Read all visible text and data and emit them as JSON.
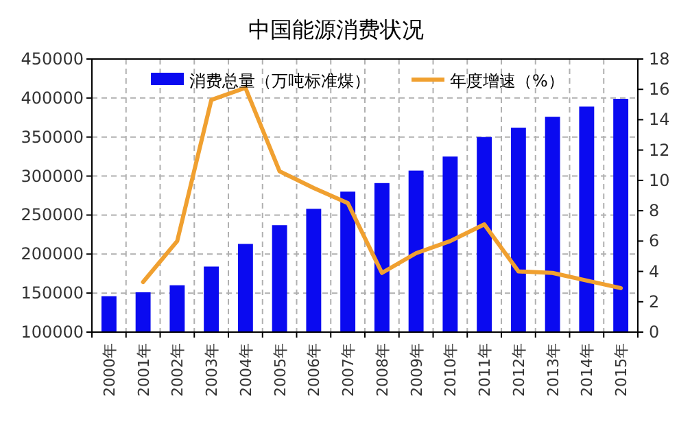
{
  "chart_data": {
    "type": "bar",
    "title": "中国能源消费状况",
    "categories": [
      "2000年",
      "2001年",
      "2002年",
      "2003年",
      "2004年",
      "2005年",
      "2006年",
      "2007年",
      "2008年",
      "2009年",
      "2010年",
      "2011年",
      "2012年",
      "2013年",
      "2014年",
      "2015年"
    ],
    "series": [
      {
        "name": "消费总量（万吨标准煤）",
        "color": "#0a0af0",
        "values": [
          146000,
          151000,
          160000,
          184000,
          213000,
          237000,
          258000,
          280000,
          291000,
          307000,
          325000,
          350000,
          362000,
          376000,
          389000,
          399000
        ]
      },
      {
        "name": "年度增速（%）",
        "type": "line",
        "axis": "y2",
        "color": "#f0a030",
        "values": [
          null,
          3.3,
          6.0,
          15.3,
          16.1,
          10.6,
          9.5,
          8.5,
          3.9,
          5.2,
          6.0,
          7.1,
          4.0,
          3.9,
          3.4,
          2.9
        ]
      }
    ],
    "ylim": [
      100000,
      450000
    ],
    "yticks": [
      100000,
      150000,
      200000,
      250000,
      300000,
      350000,
      400000,
      450000
    ],
    "y2lim": [
      0,
      18
    ],
    "y2ticks": [
      0,
      2,
      4,
      6,
      8,
      10,
      12,
      14,
      16,
      18
    ],
    "grid": true,
    "legend": "top"
  }
}
